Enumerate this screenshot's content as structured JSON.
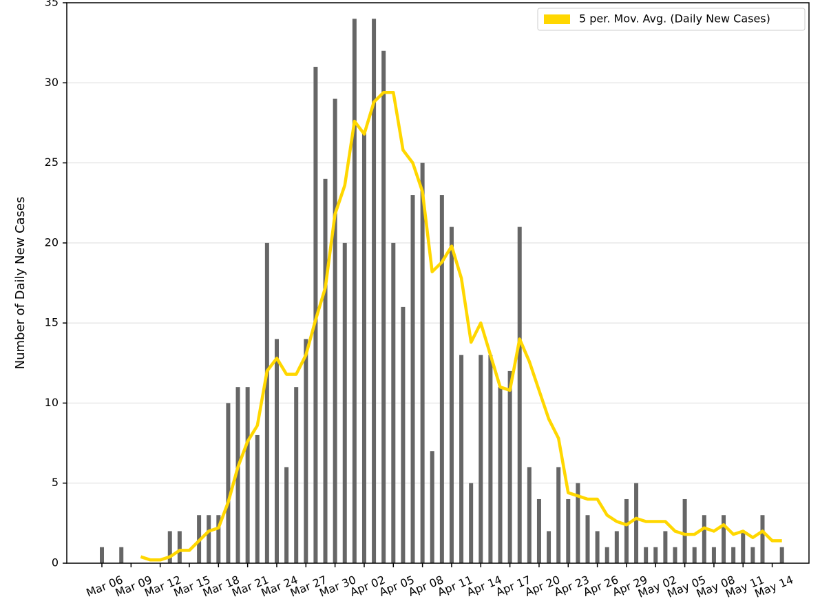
{
  "chart_data": {
    "type": "bar",
    "y_label": "Number of Daily New Cases",
    "categories": [
      "Mar 06",
      null,
      null,
      "Mar 09",
      null,
      null,
      "Mar 12",
      null,
      null,
      "Mar 15",
      null,
      null,
      "Mar 18",
      null,
      null,
      "Mar 21",
      null,
      null,
      "Mar 24",
      null,
      null,
      "Mar 27",
      null,
      null,
      "Mar 30",
      null,
      null,
      "Apr 02",
      null,
      null,
      "Apr 05",
      null,
      null,
      "Apr 08",
      null,
      null,
      "Apr 11",
      null,
      null,
      "Apr 14",
      null,
      null,
      "Apr 17",
      null,
      null,
      "Apr 20",
      null,
      null,
      "Apr 23",
      null,
      null,
      "Apr 26",
      null,
      null,
      "Apr 29",
      null,
      null,
      "May 02",
      null,
      null,
      "May 05",
      null,
      null,
      "May 08",
      null,
      null,
      "May 11",
      null,
      null,
      "May 14",
      null
    ],
    "series": [
      {
        "type": "bar",
        "color": "#666666",
        "values": [
          1,
          0,
          1,
          0,
          0,
          0,
          0,
          2,
          2,
          0,
          3,
          3,
          3,
          10,
          11,
          11,
          8,
          20,
          14,
          6,
          11,
          14,
          31,
          24,
          29,
          20,
          34,
          27,
          34,
          32,
          20,
          16,
          23,
          25,
          7,
          23,
          21,
          13,
          5,
          13,
          13,
          11,
          12,
          21,
          6,
          4,
          2,
          6,
          4,
          5,
          3,
          2,
          1,
          2,
          4,
          5,
          1,
          1,
          2,
          1,
          4,
          1,
          3,
          1,
          3,
          1,
          2,
          1,
          3,
          0,
          1
        ]
      },
      {
        "type": "line",
        "name": "5 per. Mov. Avg. (Daily New Cases)",
        "color": "#ffd700",
        "values": [
          null,
          null,
          null,
          null,
          0.4,
          0.2,
          0.2,
          0.4,
          0.8,
          0.8,
          1.4,
          2,
          2.2,
          3.8,
          6,
          7.6,
          8.6,
          12,
          12.8,
          11.8,
          11.8,
          13,
          15.2,
          17.2,
          21.8,
          23.6,
          27.6,
          26.8,
          28.8,
          29.4,
          29.4,
          25.8,
          25,
          23.2,
          18.2,
          18.8,
          19.8,
          17.8,
          13.8,
          15,
          13,
          11,
          10.8,
          14,
          12.6,
          10.8,
          9,
          7.8,
          4.4,
          4.2,
          4,
          4,
          3,
          2.6,
          2.4,
          2.8,
          2.6,
          2.6,
          2.6,
          2,
          1.8,
          1.8,
          2.2,
          2,
          2.4,
          1.8,
          2,
          1.6,
          2,
          1.4,
          1.4
        ]
      }
    ],
    "ylim": [
      0,
      35
    ],
    "yticks": [
      0,
      5,
      10,
      15,
      20,
      25,
      30,
      35
    ],
    "grid": true,
    "legend": "upper right"
  }
}
